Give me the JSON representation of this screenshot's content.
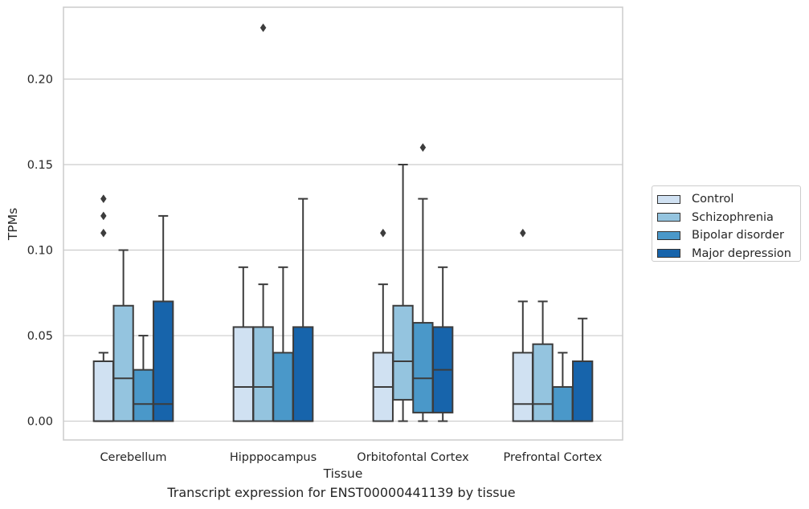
{
  "caption": "Transcript expression for ENST00000441139 by tissue",
  "colors": {
    "Control": "#d0e1f2",
    "Schizophrenia": "#94c4df",
    "Bipolar disorder": "#4a98c9",
    "Major depression": "#1764ab",
    "grid": "#cccccc",
    "edge": "#3c3c3c"
  },
  "chart_data": {
    "type": "box",
    "xlabel": "Tissue",
    "ylabel": "TPMs",
    "categories": [
      "Cerebellum",
      "Hipppocampus",
      "Orbitofontal Cortex",
      "Prefrontal Cortex"
    ],
    "ylim": [
      -0.011,
      0.242
    ],
    "yticks": [
      0.0,
      0.05,
      0.1,
      0.15,
      0.2
    ],
    "ytick_labels": [
      "0.00",
      "0.05",
      "0.10",
      "0.15",
      "0.20"
    ],
    "grid": true,
    "legend": "outside right",
    "series": [
      {
        "name": "Control",
        "boxes": [
          {
            "q1": 0.0,
            "median": 0.0,
            "q3": 0.035,
            "whislo": 0.0,
            "whishi": 0.04,
            "fliers": [
              0.11,
              0.12,
              0.13
            ]
          },
          {
            "q1": 0.0,
            "median": 0.02,
            "q3": 0.055,
            "whislo": 0.0,
            "whishi": 0.09,
            "fliers": []
          },
          {
            "q1": 0.0,
            "median": 0.02,
            "q3": 0.04,
            "whislo": 0.0,
            "whishi": 0.08,
            "fliers": [
              0.11
            ]
          },
          {
            "q1": 0.0,
            "median": 0.01,
            "q3": 0.04,
            "whislo": 0.0,
            "whishi": 0.07,
            "fliers": [
              0.11
            ]
          }
        ]
      },
      {
        "name": "Schizophrenia",
        "boxes": [
          {
            "q1": 0.0,
            "median": 0.025,
            "q3": 0.0675,
            "whislo": 0.0,
            "whishi": 0.1,
            "fliers": []
          },
          {
            "q1": 0.0,
            "median": 0.02,
            "q3": 0.055,
            "whislo": 0.0,
            "whishi": 0.08,
            "fliers": [
              0.23
            ]
          },
          {
            "q1": 0.0125,
            "median": 0.035,
            "q3": 0.0675,
            "whislo": 0.0,
            "whishi": 0.15,
            "fliers": []
          },
          {
            "q1": 0.0,
            "median": 0.01,
            "q3": 0.045,
            "whislo": 0.0,
            "whishi": 0.07,
            "fliers": []
          }
        ]
      },
      {
        "name": "Bipolar disorder",
        "boxes": [
          {
            "q1": 0.0,
            "median": 0.01,
            "q3": 0.03,
            "whislo": 0.0,
            "whishi": 0.05,
            "fliers": []
          },
          {
            "q1": 0.0,
            "median": 0.0,
            "q3": 0.04,
            "whislo": 0.0,
            "whishi": 0.09,
            "fliers": []
          },
          {
            "q1": 0.005,
            "median": 0.025,
            "q3": 0.0575,
            "whislo": 0.0,
            "whishi": 0.13,
            "fliers": [
              0.16
            ]
          },
          {
            "q1": 0.0,
            "median": 0.0,
            "q3": 0.02,
            "whislo": 0.0,
            "whishi": 0.04,
            "fliers": []
          }
        ]
      },
      {
        "name": "Major depression",
        "boxes": [
          {
            "q1": 0.0,
            "median": 0.01,
            "q3": 0.07,
            "whislo": 0.0,
            "whishi": 0.12,
            "fliers": []
          },
          {
            "q1": 0.0,
            "median": 0.0,
            "q3": 0.055,
            "whislo": 0.0,
            "whishi": 0.13,
            "fliers": []
          },
          {
            "q1": 0.005,
            "median": 0.03,
            "q3": 0.055,
            "whislo": 0.0,
            "whishi": 0.09,
            "fliers": []
          },
          {
            "q1": 0.0,
            "median": 0.0,
            "q3": 0.035,
            "whislo": 0.0,
            "whishi": 0.06,
            "fliers": []
          }
        ]
      }
    ]
  }
}
